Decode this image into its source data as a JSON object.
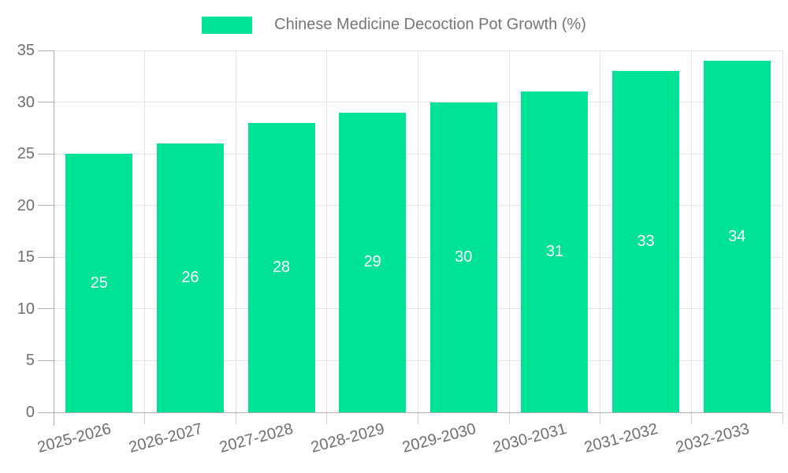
{
  "legend": {
    "label": "Chinese Medicine Decoction Pot Growth (%)"
  },
  "colors": {
    "bar": "#00E396",
    "axis_label": "#6e6e6e",
    "legend_text": "#757575",
    "grid": "#e4e4e4",
    "axis_line": "#adadad",
    "value_label": "#ffffff"
  },
  "chart_data": {
    "type": "bar",
    "title": "Chinese Medicine Decoction Pot Growth (%)",
    "categories": [
      "2025-2026",
      "2026-2027",
      "2027-2028",
      "2028-2029",
      "2029-2030",
      "2030-2031",
      "2031-2032",
      "2032-2033"
    ],
    "values": [
      25,
      26,
      28,
      29,
      30,
      31,
      33,
      34
    ],
    "yticks": [
      0,
      5,
      10,
      15,
      20,
      25,
      30,
      35
    ],
    "xlabel": "",
    "ylabel": "",
    "ylim": [
      0,
      35
    ],
    "grid": true,
    "legend_position": "top",
    "data_labels": "values shown in white, centered inside bars",
    "xlabel_rotation_deg": -15
  }
}
